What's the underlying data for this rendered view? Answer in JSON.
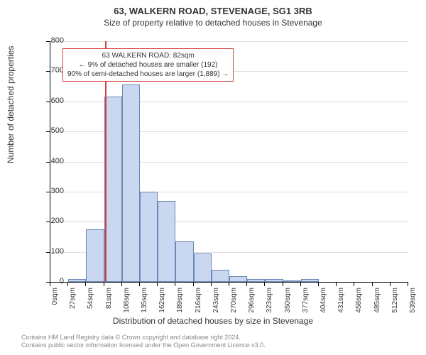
{
  "header": {
    "title": "63, WALKERN ROAD, STEVENAGE, SG1 3RB",
    "subtitle": "Size of property relative to detached houses in Stevenage"
  },
  "chart": {
    "type": "histogram",
    "ylabel": "Number of detached properties",
    "xlabel": "Distribution of detached houses by size in Stevenage",
    "ylim": [
      0,
      800
    ],
    "ytick_step": 100,
    "yticks": [
      0,
      100,
      200,
      300,
      400,
      500,
      600,
      700,
      800
    ],
    "xticks": [
      "0sqm",
      "27sqm",
      "54sqm",
      "81sqm",
      "108sqm",
      "135sqm",
      "162sqm",
      "189sqm",
      "216sqm",
      "243sqm",
      "270sqm",
      "296sqm",
      "323sqm",
      "350sqm",
      "377sqm",
      "404sqm",
      "431sqm",
      "458sqm",
      "485sqm",
      "512sqm",
      "539sqm"
    ],
    "bar_fill": "#c9d8f0",
    "bar_stroke": "#6b87b5",
    "bar_stroke_width": 1,
    "grid_color": "#dddddd",
    "background_color": "#ffffff",
    "values": [
      0,
      10,
      175,
      615,
      655,
      300,
      268,
      135,
      95,
      40,
      20,
      10,
      10,
      5,
      10,
      0,
      0,
      0,
      0,
      0
    ],
    "reference_line": {
      "value_sqm": 82,
      "color": "#d04040",
      "width": 2
    },
    "annotation": {
      "line1": "63 WALKERN ROAD: 82sqm",
      "line2": "← 9% of detached houses are smaller (192)",
      "line3": "90% of semi-detached houses are larger (1,889) →",
      "border_color": "#d04040",
      "font_size": 10
    }
  },
  "attribution": {
    "line1": "Contains HM Land Registry data © Crown copyright and database right 2024.",
    "line2": "Contains public sector information licensed under the Open Government Licence v3.0."
  }
}
